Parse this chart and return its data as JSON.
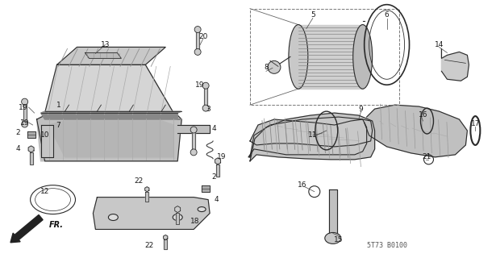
{
  "bg_color": "#f5f5f0",
  "line_color": "#2a2a2a",
  "text_color": "#1a1a1a",
  "diagram_code": "5T73 B0100",
  "label_fontsize": 6.5,
  "small_fontsize": 5.5
}
